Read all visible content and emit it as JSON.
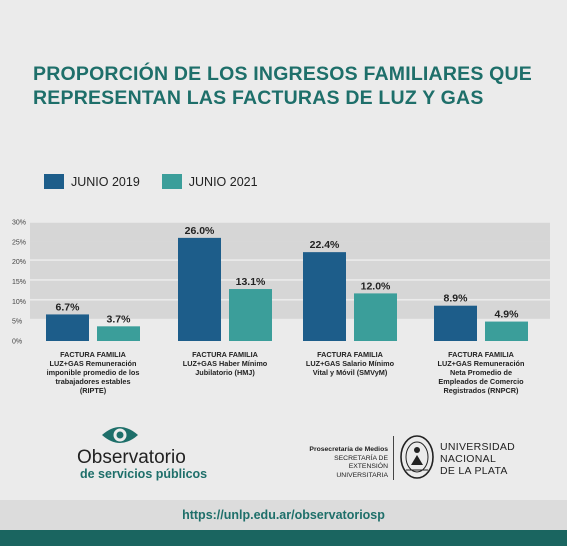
{
  "header": {
    "title_line1": "PROPORCIÓN DE LOS INGRESOS FAMILIARES QUE",
    "title_line2": "REPRESENTAN LAS FACTURAS DE LUZ Y GAS"
  },
  "colors": {
    "series1": "#1d5d8a",
    "series2": "#3b9e9a",
    "accent": "#1e6f6a"
  },
  "chart_data": {
    "type": "bar",
    "title": "PROPORCIÓN DE LOS INGRESOS FAMILIARES QUE REPRESENTAN LAS FACTURAS DE LUZ Y GAS",
    "categories": [
      [
        "FACTURA FAMILIA",
        "LUZ+GAS Remuneración",
        "imponible promedio de los",
        "trabajadores estables",
        "(RIPTE)"
      ],
      [
        "FACTURA FAMILIA",
        "LUZ+GAS Haber Mínimo",
        "Jubilatorio (HMJ)"
      ],
      [
        "FACTURA FAMILIA",
        "LUZ+GAS Salario Mínimo",
        "Vital y Móvil (SMVyM)"
      ],
      [
        "FACTURA FAMILIA",
        "LUZ+GAS Remuneración",
        "Neta Promedio de",
        "Empleados de Comercio",
        "Registrados (RNPCR)"
      ]
    ],
    "series": [
      {
        "name": "JUNIO 2019",
        "values": [
          6.7,
          26.0,
          22.4,
          8.9
        ],
        "labels": [
          "6.7%",
          "26.0%",
          "22.4%",
          "8.9%"
        ]
      },
      {
        "name": "JUNIO 2021",
        "values": [
          3.7,
          13.1,
          12.0,
          4.9
        ],
        "labels": [
          "3.7%",
          "13.1%",
          "12.0%",
          "4.9%"
        ]
      }
    ],
    "yticks": [
      "0%",
      "5%",
      "10%",
      "15%",
      "20%",
      "25%",
      "30%"
    ],
    "ylim": [
      0,
      30
    ],
    "grid": true,
    "legend": "top-left"
  },
  "brand": {
    "obs_name": "Observatorio",
    "obs_sub": "de servicios públicos",
    "prosecretaria": "Prosecretaría de Medios",
    "secretaria_l1": "SECRETARÍA DE",
    "secretaria_l2": "EXTENSIÓN UNIVERSITARIA",
    "univ_l1": "UNIVERSIDAD",
    "univ_l2": "NACIONAL",
    "univ_l3": "DE LA PLATA"
  },
  "footer": {
    "url": "https://unlp.edu.ar/observatoriosp"
  }
}
